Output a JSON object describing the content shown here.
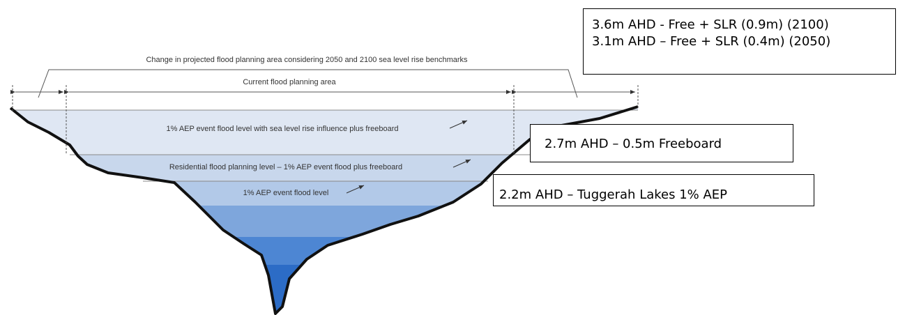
{
  "diagram": {
    "top_bracket_label": "Change in projected flood planning area considering 2050 and 2100 sea level rise benchmarks",
    "current_area_label": "Current flood planning area",
    "levels": [
      "1% AEP event flood level with sea level rise influence plus freeboard",
      "Residential flood planning level – 1% AEP event flood plus freeboard",
      "1% AEP event flood level"
    ],
    "boxes": [
      [
        "3.6m AHD - Free + SLR (0.9m) (2100)",
        "3.1m AHD – Free + SLR (0.4m) (2050)"
      ],
      [
        "2.7m AHD – 0.5m Freeboard"
      ],
      [
        "2.2m AHD – Tuggerah Lakes 1% AEP"
      ]
    ]
  }
}
